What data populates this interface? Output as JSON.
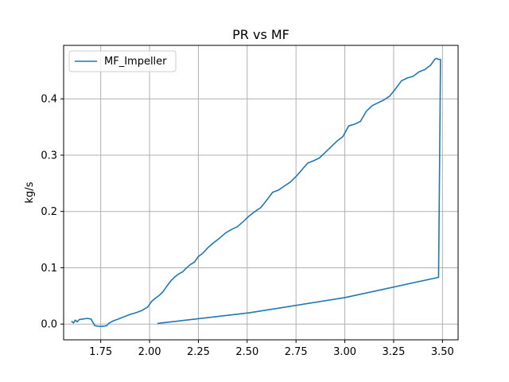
{
  "chart_data": {
    "type": "line",
    "title": "PR vs MF",
    "xlabel": "",
    "ylabel": "kg/s",
    "xlim": [
      1.56,
      3.58
    ],
    "ylim": [
      -0.028,
      0.495
    ],
    "x_ticks": [
      1.75,
      2.0,
      2.25,
      2.5,
      2.75,
      3.0,
      3.25,
      3.5
    ],
    "x_tick_labels": [
      "1.75",
      "2.00",
      "2.25",
      "2.50",
      "2.75",
      "3.00",
      "3.25",
      "3.50"
    ],
    "y_ticks": [
      0.0,
      0.1,
      0.2,
      0.3,
      0.4
    ],
    "y_tick_labels": [
      "0.0",
      "0.1",
      "0.2",
      "0.3",
      "0.4"
    ],
    "grid": true,
    "legend_position": "top-left",
    "colors": {
      "series": "#1f77b4",
      "grid": "#b0b0b0"
    },
    "series": [
      {
        "name": "MF_Impeller",
        "x": [
          1.6,
          1.61,
          1.62,
          1.63,
          1.64,
          1.66,
          1.68,
          1.7,
          1.72,
          1.74,
          1.76,
          1.78,
          1.79,
          1.81,
          1.84,
          1.87,
          1.9,
          1.93,
          1.96,
          1.99,
          2.01,
          2.03,
          2.05,
          2.07,
          2.09,
          2.11,
          2.13,
          2.15,
          2.17,
          2.19,
          2.21,
          2.23,
          2.25,
          2.27,
          2.3,
          2.33,
          2.36,
          2.39,
          2.42,
          2.45,
          2.48,
          2.51,
          2.54,
          2.57,
          2.6,
          2.63,
          2.66,
          2.69,
          2.72,
          2.75,
          2.78,
          2.81,
          2.84,
          2.87,
          2.9,
          2.93,
          2.96,
          2.99,
          3.02,
          3.05,
          3.08,
          3.11,
          3.14,
          3.17,
          3.2,
          3.23,
          3.26,
          3.29,
          3.32,
          3.35,
          3.38,
          3.41,
          3.44,
          3.46,
          3.47,
          3.48,
          3.49,
          3.48,
          3.0,
          2.51,
          2.04
        ],
        "y": [
          0.005,
          0.002,
          0.007,
          0.004,
          0.008,
          0.009,
          0.01,
          0.009,
          -0.003,
          -0.004,
          -0.004,
          -0.003,
          0.001,
          0.005,
          0.009,
          0.013,
          0.017,
          0.02,
          0.024,
          0.03,
          0.04,
          0.046,
          0.051,
          0.058,
          0.068,
          0.077,
          0.084,
          0.089,
          0.093,
          0.1,
          0.106,
          0.11,
          0.12,
          0.125,
          0.136,
          0.145,
          0.153,
          0.162,
          0.168,
          0.173,
          0.182,
          0.192,
          0.2,
          0.207,
          0.22,
          0.234,
          0.238,
          0.245,
          0.252,
          0.262,
          0.274,
          0.286,
          0.29,
          0.295,
          0.305,
          0.315,
          0.325,
          0.333,
          0.352,
          0.355,
          0.36,
          0.378,
          0.388,
          0.393,
          0.398,
          0.405,
          0.418,
          0.432,
          0.437,
          0.44,
          0.448,
          0.452,
          0.46,
          0.47,
          0.472,
          0.47,
          0.47,
          0.083,
          0.047,
          0.02,
          0.001
        ]
      }
    ]
  }
}
